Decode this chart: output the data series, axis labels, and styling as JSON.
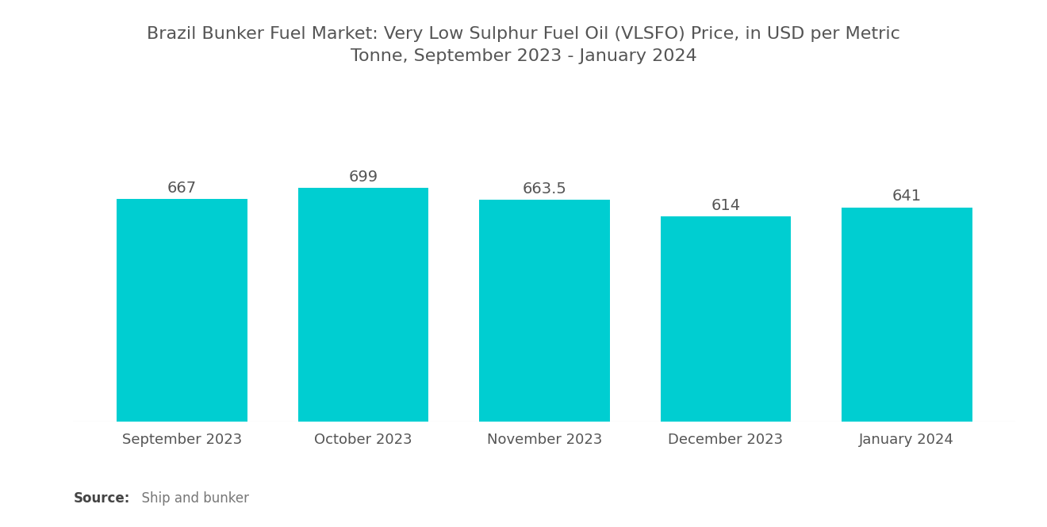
{
  "title": "Brazil Bunker Fuel Market: Very Low Sulphur Fuel Oil (VLSFO) Price, in USD per Metric\nTonne, September 2023 - January 2024",
  "categories": [
    "September 2023",
    "October 2023",
    "November 2023",
    "December 2023",
    "January 2024"
  ],
  "values": [
    667,
    699,
    663.5,
    614,
    641
  ],
  "bar_color": "#00CED1",
  "bar_width": 0.72,
  "ylim": [
    0,
    820
  ],
  "value_labels": [
    "667",
    "699",
    "663.5",
    "614",
    "641"
  ],
  "background_color": "#ffffff",
  "title_fontsize": 16,
  "label_fontsize": 13,
  "value_fontsize": 14,
  "source_bold": "Source:",
  "source_detail": "  Ship and bunker",
  "source_fontsize": 12,
  "text_color": "#555555",
  "title_color": "#555555",
  "source_bold_color": "#444444",
  "source_detail_color": "#777777"
}
